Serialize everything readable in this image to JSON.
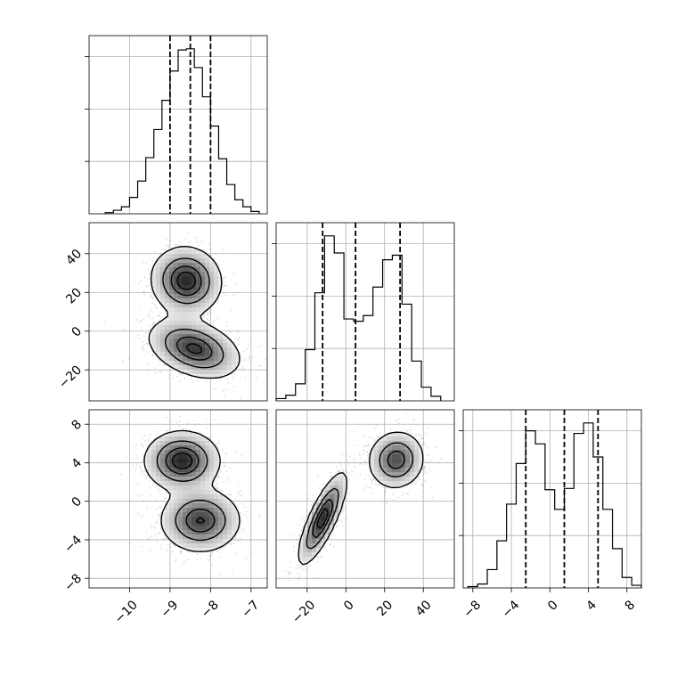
{
  "chart_data": {
    "type": "corner",
    "grid": true,
    "params": [
      {
        "range": [
          -11.0,
          -6.6
        ],
        "ticks": [
          -10,
          -9,
          -8,
          -7
        ],
        "tick_labels": [
          "−10",
          "−9",
          "−8",
          "−7"
        ]
      },
      {
        "range": [
          -36,
          56
        ],
        "ticks": [
          -20,
          0,
          20,
          40
        ],
        "tick_labels": [
          "−20",
          "0",
          "20",
          "40"
        ]
      },
      {
        "range": [
          -9,
          9.5
        ],
        "ticks": [
          -8,
          -4,
          0,
          4,
          8
        ],
        "tick_labels": [
          "−8",
          "−4",
          "0",
          "4",
          "8"
        ]
      }
    ],
    "histograms": [
      {
        "param": 0,
        "bin_edges": [
          -10.6,
          -10.4,
          -10.2,
          -10.0,
          -9.8,
          -9.6,
          -9.4,
          -9.2,
          -9.0,
          -8.8,
          -8.6,
          -8.4,
          -8.2,
          -8.0,
          -7.8,
          -7.6,
          -7.4,
          -7.2,
          -7.0,
          -6.8
        ],
        "counts": [
          1,
          3,
          6,
          14,
          28,
          48,
          72,
          97,
          122,
          140,
          141,
          125,
          100,
          75,
          47,
          25,
          12,
          6,
          2
        ],
        "quantiles": [
          -9.0,
          -8.5,
          -8.0
        ]
      },
      {
        "param": 1,
        "bin_edges": [
          -36,
          -31,
          -26,
          -21,
          -16,
          -11,
          -6,
          -1,
          4,
          9,
          14,
          19,
          24,
          29,
          34,
          39,
          44,
          49
        ],
        "counts": [
          2,
          5,
          15,
          45,
          95,
          145,
          130,
          72,
          70,
          75,
          100,
          124,
          128,
          85,
          35,
          12,
          4
        ],
        "quantiles": [
          -12,
          5,
          28
        ]
      },
      {
        "param": 2,
        "bin_edges": [
          -8.5,
          -7.5,
          -6.5,
          -5.5,
          -4.5,
          -3.5,
          -2.5,
          -1.5,
          -0.5,
          0.5,
          1.5,
          2.5,
          3.5,
          4.5,
          5.5,
          6.5,
          7.5,
          8.5,
          9.5
        ],
        "counts": [
          1,
          3,
          14,
          36,
          64,
          95,
          120,
          110,
          75,
          60,
          76,
          118,
          126,
          100,
          60,
          30,
          8,
          2
        ],
        "quantiles": [
          -2.5,
          1.5,
          5.0
        ]
      }
    ],
    "joint_2d": [
      {
        "x_param": 0,
        "y_param": 1,
        "modes": [
          {
            "center": [
              -8.6,
              26
            ],
            "sigma": [
              0.42,
              8.5
            ],
            "rho": -0.05,
            "weight": 0.5
          },
          {
            "center": [
              -8.4,
              -9
            ],
            "sigma": [
              0.55,
              7.5
            ],
            "rho": -0.35,
            "weight": 0.5
          }
        ]
      },
      {
        "x_param": 0,
        "y_param": 2,
        "modes": [
          {
            "center": [
              -8.7,
              4.2
            ],
            "sigma": [
              0.45,
              1.5
            ],
            "rho": 0.0,
            "weight": 0.5
          },
          {
            "center": [
              -8.25,
              -2.0
            ],
            "sigma": [
              0.48,
              1.6
            ],
            "rho": 0.0,
            "weight": 0.5
          }
        ]
      },
      {
        "x_param": 1,
        "y_param": 2,
        "modes": [
          {
            "center": [
              -12,
              -1.8
            ],
            "sigma": [
              6.0,
              2.3
            ],
            "rho": 0.8,
            "weight": 0.5
          },
          {
            "center": [
              26,
              4.3
            ],
            "sigma": [
              7.0,
              1.45
            ],
            "rho": 0.05,
            "weight": 0.5
          }
        ]
      }
    ],
    "contour_levels": [
      0.118,
      0.393,
      0.675,
      0.865
    ]
  }
}
